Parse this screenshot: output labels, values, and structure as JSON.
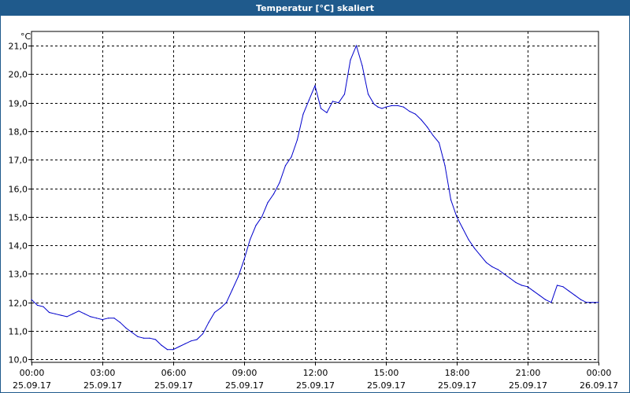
{
  "window": {
    "title": "Temperatur [°C] skaliert"
  },
  "chart_data": {
    "type": "line",
    "title": "Temperatur [°C] skaliert",
    "xlabel": "",
    "ylabel": "°C",
    "unit_label": "°C",
    "ylim": [
      10.0,
      21.0
    ],
    "y_ticks": [
      "10,0",
      "11,0",
      "12,0",
      "13,0",
      "14,0",
      "15,0",
      "16,0",
      "17,0",
      "18,0",
      "19,0",
      "20,0",
      "21,0"
    ],
    "x_ticks": [
      {
        "time": "00:00",
        "date": "25.09.17"
      },
      {
        "time": "03:00",
        "date": "25.09.17"
      },
      {
        "time": "06:00",
        "date": "25.09.17"
      },
      {
        "time": "09:00",
        "date": "25.09.17"
      },
      {
        "time": "12:00",
        "date": "25.09.17"
      },
      {
        "time": "15:00",
        "date": "25.09.17"
      },
      {
        "time": "18:00",
        "date": "25.09.17"
      },
      {
        "time": "21:00",
        "date": "25.09.17"
      },
      {
        "time": "00:00",
        "date": "26.09.17"
      }
    ],
    "grid": true,
    "series": [
      {
        "color": "#0000cc",
        "x": [
          "00:00",
          "00:15",
          "00:30",
          "00:45",
          "01:00",
          "01:15",
          "01:30",
          "01:45",
          "02:00",
          "02:15",
          "02:30",
          "02:45",
          "03:00",
          "03:15",
          "03:30",
          "03:45",
          "04:00",
          "04:15",
          "04:30",
          "04:45",
          "05:00",
          "05:15",
          "05:30",
          "05:45",
          "06:00",
          "06:15",
          "06:30",
          "06:45",
          "07:00",
          "07:15",
          "07:30",
          "07:45",
          "08:00",
          "08:15",
          "08:30",
          "08:45",
          "09:00",
          "09:15",
          "09:30",
          "09:45",
          "10:00",
          "10:15",
          "10:30",
          "10:45",
          "11:00",
          "11:15",
          "11:30",
          "11:45",
          "12:00",
          "12:15",
          "12:30",
          "12:45",
          "13:00",
          "13:15",
          "13:30",
          "13:45",
          "14:00",
          "14:15",
          "14:30",
          "14:40",
          "14:50",
          "15:00",
          "15:15",
          "15:30",
          "15:45",
          "16:00",
          "16:15",
          "16:30",
          "16:45",
          "17:00",
          "17:15",
          "17:30",
          "17:45",
          "18:00",
          "18:15",
          "18:30",
          "18:45",
          "19:00",
          "19:15",
          "19:30",
          "19:45",
          "20:00",
          "20:15",
          "20:30",
          "20:45",
          "21:00",
          "21:15",
          "21:30",
          "21:45",
          "22:00",
          "22:15",
          "22:30",
          "22:45",
          "23:00",
          "23:15",
          "23:30",
          "23:45",
          "24:00"
        ],
        "values": [
          12.1,
          11.9,
          11.85,
          11.65,
          11.6,
          11.55,
          11.5,
          11.6,
          11.7,
          11.6,
          11.5,
          11.45,
          11.4,
          11.45,
          11.45,
          11.3,
          11.1,
          10.95,
          10.8,
          10.75,
          10.75,
          10.7,
          10.5,
          10.35,
          10.35,
          10.45,
          10.55,
          10.65,
          10.7,
          10.9,
          11.3,
          11.65,
          11.8,
          12.0,
          12.45,
          12.9,
          13.5,
          14.2,
          14.7,
          15.0,
          15.5,
          15.8,
          16.2,
          16.8,
          17.1,
          17.7,
          18.6,
          19.1,
          19.6,
          18.8,
          18.65,
          19.05,
          19.0,
          19.3,
          20.5,
          21.0,
          20.3,
          19.3,
          18.95,
          18.85,
          18.8,
          18.85,
          18.9,
          18.9,
          18.85,
          18.7,
          18.6,
          18.4,
          18.15,
          17.85,
          17.6,
          16.8,
          15.6,
          15.0,
          14.6,
          14.2,
          13.9,
          13.65,
          13.4,
          13.25,
          13.15,
          13.0,
          12.85,
          12.7,
          12.6,
          12.55,
          12.4,
          12.25,
          12.1,
          12.0,
          12.6,
          12.55,
          12.4,
          12.25,
          12.1,
          12.0,
          12.0,
          12.0
        ]
      }
    ]
  }
}
